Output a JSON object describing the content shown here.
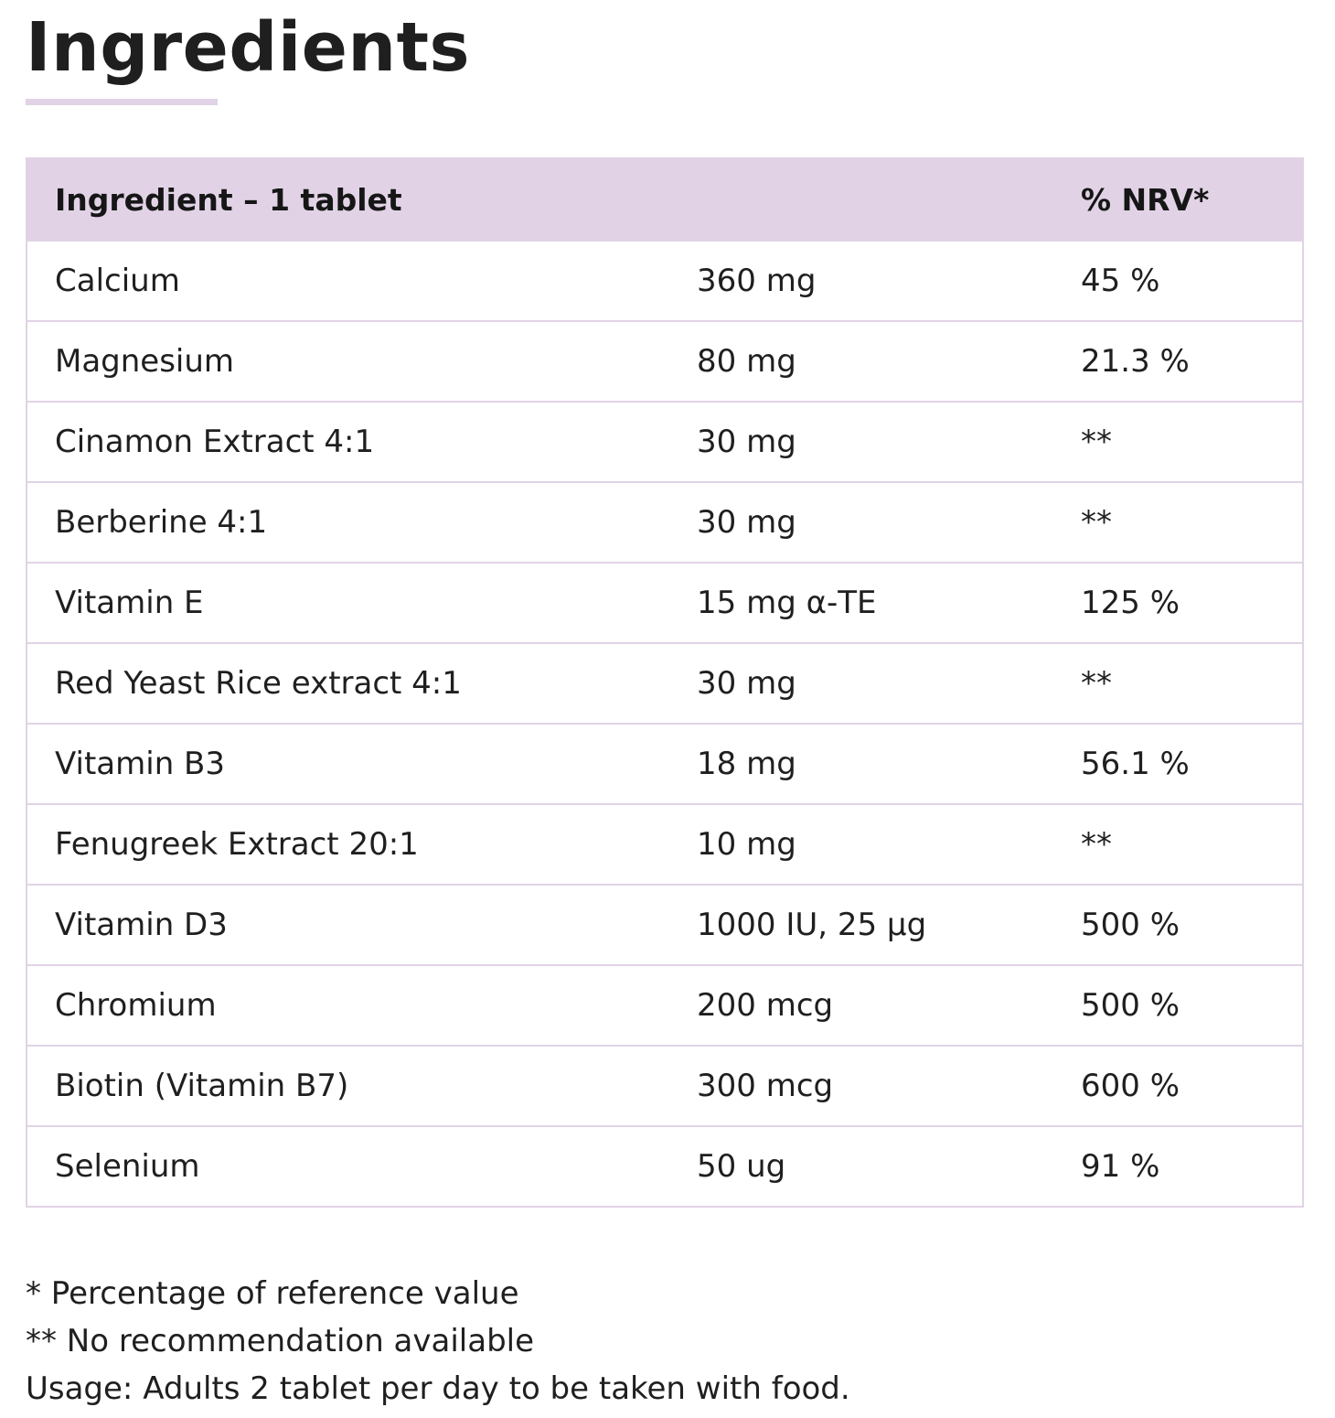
{
  "heading": "Ingredients",
  "table": {
    "header": {
      "ingredient": "Ingredient – 1 tablet",
      "amount": "",
      "nrv": "% NRV*"
    },
    "rows": [
      {
        "name": "Calcium",
        "amount": "360 mg",
        "nrv": "45 %"
      },
      {
        "name": "Magnesium",
        "amount": "80 mg",
        "nrv": "21.3 %"
      },
      {
        "name": "Cinamon Extract 4:1",
        "amount": "30 mg",
        "nrv": "**"
      },
      {
        "name": "Berberine 4:1",
        "amount": "30 mg",
        "nrv": "**"
      },
      {
        "name": "Vitamin E",
        "amount": "15 mg α-TE",
        "nrv": "125 %"
      },
      {
        "name": "Red Yeast Rice extract 4:1",
        "amount": "30 mg",
        "nrv": "**"
      },
      {
        "name": "Vitamin B3",
        "amount": "18 mg",
        "nrv": "56.1 %"
      },
      {
        "name": "Fenugreek Extract 20:1",
        "amount": "10 mg",
        "nrv": "**"
      },
      {
        "name": "Vitamin D3",
        "amount": "1000 IU, 25 µg",
        "nrv": "500 %"
      },
      {
        "name": "Chromium",
        "amount": "200 mcg",
        "nrv": "500 %"
      },
      {
        "name": "Biotin (Vitamin B7)",
        "amount": "300 mcg",
        "nrv": "600 %"
      },
      {
        "name": "Selenium",
        "amount": "50 ug",
        "nrv": "91 %"
      }
    ]
  },
  "footnotes": {
    "nrv_note": "* Percentage of reference value",
    "no_rec_note": "** No recommendation available",
    "usage": "Usage: Adults 2 tablet per day to be taken with food."
  },
  "colors": {
    "accent": "#e1d3e5",
    "text": "#1f1f1f"
  }
}
